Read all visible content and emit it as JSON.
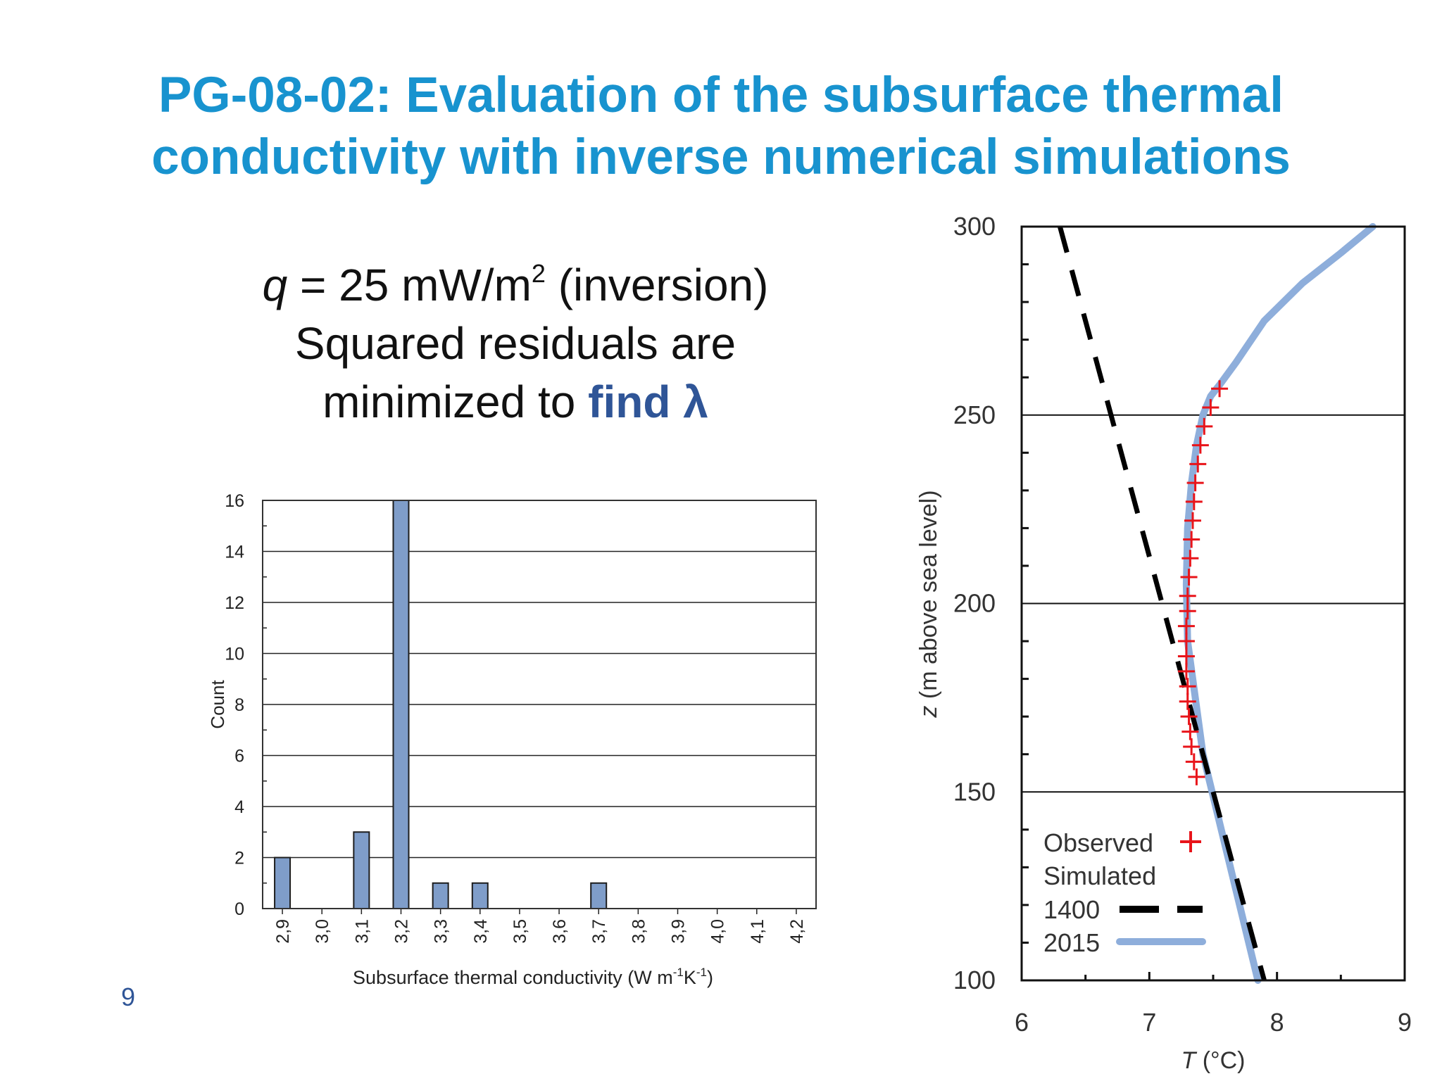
{
  "slide": {
    "title_line1": "PG-08-02: Evaluation of the subsurface thermal",
    "title_line2": "conductivity with inverse numerical simulations",
    "subtitle_q_symbol": "q",
    "subtitle_q_rest": " = 25 mW/m",
    "subtitle_q_exp": "2",
    "subtitle_q_tail": " (inversion)",
    "subtitle_line2": "Squared residuals are",
    "subtitle_line3_plain": "minimized to ",
    "subtitle_line3_highlight": "find λ",
    "page_number": "9"
  },
  "colors": {
    "title": "#1893cf",
    "highlight": "#2f5597",
    "bar_fill": "#7f9dc9",
    "observed": "#e8141a",
    "sim_1400": "#000000",
    "sim_2015": "#8eaedb"
  },
  "chart_data": [
    {
      "type": "bar",
      "title": "",
      "xlabel_parts": [
        "Subsurface thermal conductivity (W m",
        "-1",
        "K",
        "-1",
        ")"
      ],
      "ylabel": "Count",
      "categories": [
        "2,9",
        "3,0",
        "3,1",
        "3,2",
        "3,3",
        "3,4",
        "3,5",
        "3,6",
        "3,7",
        "3,8",
        "3,9",
        "4,0",
        "4,1",
        "4,2"
      ],
      "values": [
        2,
        0,
        3,
        16,
        1,
        1,
        0,
        0,
        1,
        0,
        0,
        0,
        0,
        0
      ],
      "ylim": [
        0,
        16
      ],
      "yticks": [
        0,
        2,
        4,
        6,
        8,
        10,
        12,
        14,
        16
      ],
      "grid": true
    },
    {
      "type": "line",
      "title": "",
      "xlabel_var": "T",
      "xlabel_unit": " (°C)",
      "ylabel_var": "z",
      "ylabel_unit": " (m above sea level)",
      "xlim": [
        6,
        9
      ],
      "ylim": [
        100,
        300
      ],
      "xticks": [
        6,
        7,
        8,
        9
      ],
      "yticks": [
        100,
        150,
        200,
        250,
        300
      ],
      "grid": "horizontal",
      "legend_position": "bottom-left",
      "legend": {
        "observed_label": "Observed",
        "simulated_label": "Simulated",
        "sim1400_label": "1400",
        "sim2015_label": "2015"
      },
      "series": [
        {
          "name": "Observed",
          "style": "plus-markers",
          "x": [
            7.55,
            7.48,
            7.43,
            7.4,
            7.38,
            7.36,
            7.35,
            7.34,
            7.33,
            7.32,
            7.31,
            7.3,
            7.3,
            7.29,
            7.29,
            7.29,
            7.29,
            7.3,
            7.3,
            7.31,
            7.32,
            7.33,
            7.35,
            7.37
          ],
          "y": [
            257,
            252,
            247,
            242,
            237,
            232,
            227,
            222,
            217,
            212,
            207,
            202,
            198,
            194,
            190,
            186,
            182,
            178,
            174,
            170,
            166,
            162,
            158,
            154
          ]
        },
        {
          "name": "1400",
          "style": "dashed",
          "x": [
            6.3,
            7.9
          ],
          "y": [
            300,
            100
          ]
        },
        {
          "name": "2015",
          "style": "solid",
          "x": [
            7.85,
            7.42,
            7.36,
            7.3,
            7.29,
            7.3,
            7.33,
            7.37,
            7.42,
            7.48,
            7.55,
            7.68,
            7.9,
            8.2,
            8.5,
            8.75
          ],
          "y": [
            100,
            160,
            175,
            190,
            205,
            220,
            232,
            242,
            250,
            255,
            258,
            264,
            275,
            285,
            293,
            300
          ]
        }
      ]
    }
  ]
}
